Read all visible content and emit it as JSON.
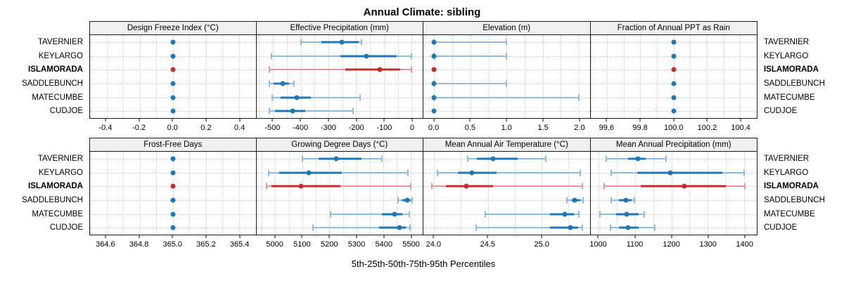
{
  "title": "Annual Climate: sibling",
  "caption": "5th-25th-50th-75th-95th Percentiles",
  "rows": [
    "TAVERNIER",
    "KEYLARGO",
    "ISLAMORADA",
    "SADDLEBUNCH",
    "MATECUMBE",
    "CUDJOE"
  ],
  "highlight_row": "ISLAMORADA",
  "colors": {
    "blue": "#1f77b4",
    "blue_light": "#8fbcdb",
    "red": "#bf2e2e",
    "red_light": "#dc9a96",
    "grid": "#c8c8c8",
    "strip_bg": "#f0f0f0",
    "border": "#1a1a1a"
  },
  "chart_data": [
    {
      "type": "dot-whisker",
      "title": "Design Freeze Index (°C)",
      "percentiles": [
        5,
        25,
        50,
        75,
        95
      ],
      "xlim": [
        -0.5,
        0.5
      ],
      "ticks": [
        -0.4,
        -0.2,
        0.0,
        0.2,
        0.4
      ],
      "tick_labels": [
        "-0.4",
        "-0.2",
        "0.0",
        "0.2",
        "0.4"
      ],
      "series": [
        [
          0,
          0,
          0,
          0,
          0
        ],
        [
          0,
          0,
          0,
          0,
          0
        ],
        [
          0,
          0,
          0,
          0,
          0
        ],
        [
          0,
          0,
          0,
          0,
          0
        ],
        [
          0,
          0,
          0,
          0,
          0
        ],
        [
          0,
          0,
          0,
          0,
          0
        ]
      ]
    },
    {
      "type": "dot-whisker",
      "title": "Effective Precipitation (mm)",
      "percentiles": [
        5,
        25,
        50,
        75,
        95
      ],
      "xlim": [
        -560,
        40
      ],
      "ticks": [
        -500,
        -400,
        -300,
        -200,
        -100,
        0
      ],
      "tick_labels": [
        "-500",
        "-400",
        "-300",
        "-200",
        "-100",
        "0"
      ],
      "series": [
        [
          -398,
          -325,
          -253,
          -190,
          -180
        ],
        [
          -505,
          -258,
          -162,
          -55,
          0
        ],
        [
          -512,
          -240,
          -115,
          -40,
          0
        ],
        [
          -513,
          -498,
          -465,
          -442,
          -425
        ],
        [
          -503,
          -473,
          -415,
          -364,
          -186
        ],
        [
          -512,
          -492,
          -430,
          -384,
          -211
        ]
      ]
    },
    {
      "type": "dot-whisker",
      "title": "Elevation (m)",
      "percentiles": [
        5,
        25,
        50,
        75,
        95
      ],
      "xlim": [
        -0.15,
        2.15
      ],
      "ticks": [
        0.0,
        0.5,
        1.0,
        1.5,
        2.0
      ],
      "tick_labels": [
        "0.0",
        "0.5",
        "1.0",
        "1.5",
        "2.0"
      ],
      "series": [
        [
          0,
          0,
          0,
          0,
          1
        ],
        [
          0,
          0,
          0,
          0,
          1
        ],
        [
          0,
          0,
          0,
          0,
          0
        ],
        [
          0,
          0,
          0,
          0,
          1
        ],
        [
          0,
          0,
          0,
          0,
          2
        ],
        [
          0,
          0,
          0,
          0,
          0
        ]
      ]
    },
    {
      "type": "dot-whisker",
      "title": "Fraction of Annual PPT as Rain",
      "percentiles": [
        5,
        25,
        50,
        75,
        95
      ],
      "xlim": [
        99.5,
        100.5
      ],
      "ticks": [
        99.6,
        99.8,
        100.0,
        100.2,
        100.4
      ],
      "tick_labels": [
        "99.6",
        "99.8",
        "100.0",
        "100.2",
        "100.4"
      ],
      "series": [
        [
          100,
          100,
          100,
          100,
          100
        ],
        [
          100,
          100,
          100,
          100,
          100
        ],
        [
          100,
          100,
          100,
          100,
          100
        ],
        [
          100,
          100,
          100,
          100,
          100
        ],
        [
          100,
          100,
          100,
          100,
          100
        ],
        [
          100,
          100,
          100,
          100,
          100
        ]
      ]
    },
    {
      "type": "dot-whisker",
      "title": "Frost-Free Days",
      "percentiles": [
        5,
        25,
        50,
        75,
        95
      ],
      "xlim": [
        364.5,
        365.5
      ],
      "ticks": [
        364.6,
        364.8,
        365.0,
        365.2,
        365.4
      ],
      "tick_labels": [
        "364.6",
        "364.8",
        "365.0",
        "365.2",
        "365.4"
      ],
      "series": [
        [
          365,
          365,
          365,
          365,
          365
        ],
        [
          365,
          365,
          365,
          365,
          365
        ],
        [
          365,
          365,
          365,
          365,
          365
        ],
        [
          365,
          365,
          365,
          365,
          365
        ],
        [
          365,
          365,
          365,
          365,
          365
        ],
        [
          365,
          365,
          365,
          365,
          365
        ]
      ]
    },
    {
      "type": "dot-whisker",
      "title": "Growing Degree Days (°C)",
      "percentiles": [
        5,
        25,
        50,
        75,
        95
      ],
      "xlim": [
        4930,
        5545
      ],
      "ticks": [
        5000,
        5100,
        5200,
        5300,
        5400,
        5500
      ],
      "tick_labels": [
        "5000",
        "5100",
        "5200",
        "5300",
        "5400",
        "5500"
      ],
      "series": [
        [
          5100,
          5160,
          5225,
          5320,
          5395
        ],
        [
          4975,
          5015,
          5125,
          5245,
          5490
        ],
        [
          4968,
          4985,
          5095,
          5240,
          5502
        ],
        [
          5455,
          5470,
          5487,
          5500,
          5505
        ],
        [
          5205,
          5395,
          5440,
          5470,
          5495
        ],
        [
          5140,
          5385,
          5458,
          5482,
          5498
        ]
      ]
    },
    {
      "type": "dot-whisker",
      "title": "Mean Annual Air Temperature (°C)",
      "percentiles": [
        5,
        25,
        50,
        75,
        95
      ],
      "xlim": [
        23.9,
        25.45
      ],
      "ticks": [
        24.0,
        24.5,
        25.0
      ],
      "tick_labels": [
        "24.0",
        "24.5",
        "25.0"
      ],
      "series": [
        [
          24.31,
          24.4,
          24.55,
          24.78,
          25.04
        ],
        [
          24.03,
          24.22,
          24.35,
          24.58,
          25.36
        ],
        [
          23.98,
          24.11,
          24.3,
          24.55,
          25.38
        ],
        [
          25.24,
          25.28,
          25.31,
          25.36,
          25.39
        ],
        [
          24.48,
          25.08,
          25.22,
          25.3,
          25.35
        ],
        [
          24.39,
          25.08,
          25.27,
          25.34,
          25.38
        ]
      ]
    },
    {
      "type": "dot-whisker",
      "title": "Mean Annual Precipitation (mm)",
      "percentiles": [
        5,
        25,
        50,
        75,
        95
      ],
      "xlim": [
        977,
        1435
      ],
      "ticks": [
        1000,
        1100,
        1200,
        1300,
        1400
      ],
      "tick_labels": [
        "1000",
        "1100",
        "1200",
        "1300",
        "1400"
      ],
      "series": [
        [
          1020,
          1080,
          1108,
          1130,
          1185
        ],
        [
          1035,
          1105,
          1197,
          1340,
          1400
        ],
        [
          1015,
          1115,
          1235,
          1350,
          1402
        ],
        [
          1035,
          1055,
          1075,
          1090,
          1098
        ],
        [
          1004,
          1048,
          1077,
          1110,
          1125
        ],
        [
          1032,
          1055,
          1080,
          1110,
          1155
        ]
      ]
    }
  ]
}
